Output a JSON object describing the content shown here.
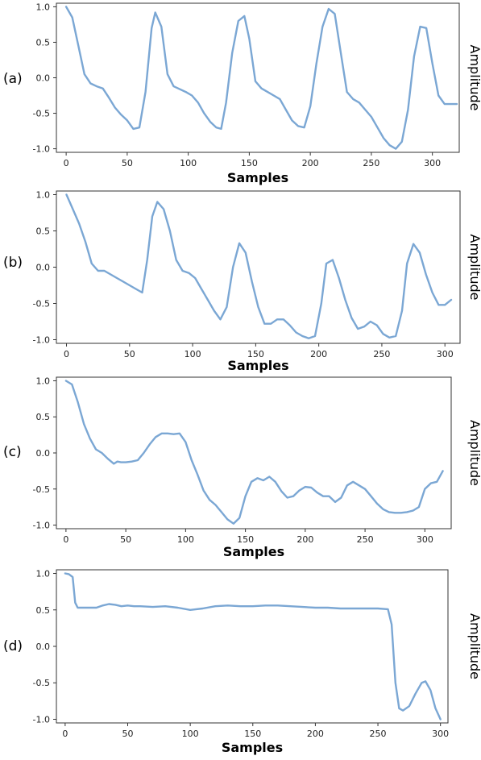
{
  "line_color": "#7ba7d4",
  "chart_data": [
    {
      "type": "line",
      "panel_label": "(a)",
      "xlabel": "Samples",
      "ylabel": "Amplitude",
      "xlim": [
        -8,
        322
      ],
      "ylim": [
        -1.05,
        1.05
      ],
      "xticks": [
        0,
        50,
        100,
        150,
        200,
        250,
        300
      ],
      "yticks": [
        1.0,
        0.5,
        0.0,
        -0.5,
        -1.0
      ],
      "ytick_labels": [
        "1.0",
        "0.5",
        "0.0",
        "-0.5",
        "-1.0"
      ],
      "grid": false,
      "series": [
        {
          "x": [
            0,
            5,
            10,
            15,
            20,
            25,
            30,
            35,
            40,
            45,
            50,
            55,
            60,
            65,
            70,
            73,
            78,
            83,
            88,
            93,
            98,
            103,
            108,
            113,
            118,
            123,
            127,
            131,
            136,
            141,
            146,
            150,
            155,
            160,
            165,
            170,
            175,
            180,
            185,
            190,
            195,
            200,
            205,
            210,
            215,
            220,
            225,
            230,
            235,
            240,
            245,
            250,
            255,
            260,
            265,
            270,
            275,
            280,
            285,
            290,
            295,
            300,
            305,
            310,
            315,
            320
          ],
          "y": [
            1.0,
            0.85,
            0.45,
            0.05,
            -0.08,
            -0.12,
            -0.15,
            -0.28,
            -0.42,
            -0.52,
            -0.6,
            -0.72,
            -0.7,
            -0.2,
            0.7,
            0.92,
            0.72,
            0.05,
            -0.12,
            -0.16,
            -0.2,
            -0.25,
            -0.35,
            -0.5,
            -0.62,
            -0.7,
            -0.72,
            -0.35,
            0.35,
            0.8,
            0.87,
            0.55,
            -0.05,
            -0.15,
            -0.2,
            -0.25,
            -0.3,
            -0.45,
            -0.6,
            -0.68,
            -0.7,
            -0.4,
            0.2,
            0.72,
            0.97,
            0.9,
            0.35,
            -0.2,
            -0.3,
            -0.35,
            -0.45,
            -0.55,
            -0.7,
            -0.85,
            -0.95,
            -1.0,
            -0.9,
            -0.45,
            0.3,
            0.72,
            0.7,
            0.2,
            -0.25,
            -0.37,
            -0.37,
            -0.37
          ]
        }
      ]
    },
    {
      "type": "line",
      "panel_label": "(b)",
      "xlabel": "Samples",
      "ylabel": "Amplitude",
      "xlim": [
        -8,
        312
      ],
      "ylim": [
        -1.05,
        1.05
      ],
      "xticks": [
        0,
        50,
        100,
        150,
        200,
        250,
        300
      ],
      "yticks": [
        1.0,
        0.5,
        0.0,
        -0.5,
        -1.0
      ],
      "ytick_labels": [
        "1.0",
        "0.5",
        "0.0",
        "-0.5",
        "-1.0"
      ],
      "grid": false,
      "series": [
        {
          "x": [
            0,
            5,
            10,
            15,
            20,
            25,
            30,
            35,
            40,
            45,
            50,
            55,
            60,
            64,
            68,
            72,
            77,
            82,
            87,
            92,
            97,
            102,
            107,
            112,
            117,
            122,
            127,
            132,
            137,
            142,
            147,
            152,
            157,
            162,
            167,
            172,
            177,
            182,
            187,
            192,
            197,
            202,
            206,
            211,
            216,
            221,
            226,
            231,
            236,
            241,
            246,
            251,
            256,
            261,
            266,
            270,
            275,
            280,
            285,
            290,
            295,
            300,
            305
          ],
          "y": [
            1.0,
            0.8,
            0.6,
            0.35,
            0.05,
            -0.05,
            -0.05,
            -0.1,
            -0.15,
            -0.2,
            -0.25,
            -0.3,
            -0.35,
            0.1,
            0.7,
            0.9,
            0.8,
            0.5,
            0.1,
            -0.05,
            -0.08,
            -0.15,
            -0.3,
            -0.45,
            -0.6,
            -0.72,
            -0.55,
            0.0,
            0.33,
            0.2,
            -0.2,
            -0.55,
            -0.78,
            -0.78,
            -0.72,
            -0.72,
            -0.8,
            -0.9,
            -0.95,
            -0.98,
            -0.95,
            -0.5,
            0.05,
            0.1,
            -0.15,
            -0.45,
            -0.7,
            -0.85,
            -0.82,
            -0.75,
            -0.8,
            -0.92,
            -0.97,
            -0.95,
            -0.6,
            0.05,
            0.32,
            0.2,
            -0.1,
            -0.35,
            -0.52,
            -0.52,
            -0.45
          ]
        }
      ]
    },
    {
      "type": "line",
      "panel_label": "(c)",
      "xlabel": "Samples",
      "ylabel": "Amplitude",
      "xlim": [
        -8,
        322
      ],
      "ylim": [
        -1.05,
        1.05
      ],
      "xticks": [
        0,
        50,
        100,
        150,
        200,
        250,
        300
      ],
      "yticks": [
        1.0,
        0.5,
        0.0,
        -0.5,
        -1.0
      ],
      "ytick_labels": [
        "1.0",
        "0.5",
        "0.0",
        "-0.5",
        "-1.0"
      ],
      "grid": false,
      "series": [
        {
          "x": [
            0,
            5,
            10,
            15,
            20,
            25,
            30,
            35,
            40,
            43,
            46,
            50,
            55,
            60,
            65,
            70,
            75,
            80,
            85,
            90,
            95,
            100,
            105,
            110,
            115,
            120,
            125,
            130,
            135,
            140,
            145,
            150,
            155,
            160,
            165,
            170,
            175,
            180,
            185,
            190,
            195,
            200,
            205,
            210,
            215,
            220,
            225,
            230,
            235,
            240,
            245,
            250,
            255,
            260,
            265,
            270,
            275,
            280,
            285,
            290,
            295,
            300,
            305,
            310,
            315
          ],
          "y": [
            1.0,
            0.95,
            0.7,
            0.4,
            0.2,
            0.05,
            0.0,
            -0.08,
            -0.15,
            -0.12,
            -0.13,
            -0.13,
            -0.12,
            -0.1,
            0.0,
            0.12,
            0.22,
            0.27,
            0.27,
            0.26,
            0.27,
            0.15,
            -0.1,
            -0.3,
            -0.52,
            -0.65,
            -0.72,
            -0.82,
            -0.92,
            -0.98,
            -0.9,
            -0.6,
            -0.4,
            -0.35,
            -0.38,
            -0.33,
            -0.4,
            -0.53,
            -0.62,
            -0.6,
            -0.52,
            -0.47,
            -0.48,
            -0.55,
            -0.6,
            -0.6,
            -0.68,
            -0.62,
            -0.45,
            -0.4,
            -0.45,
            -0.5,
            -0.6,
            -0.7,
            -0.78,
            -0.82,
            -0.83,
            -0.83,
            -0.82,
            -0.8,
            -0.75,
            -0.5,
            -0.42,
            -0.4,
            -0.25
          ]
        }
      ]
    },
    {
      "type": "line",
      "panel_label": "(d)",
      "xlabel": "Samples",
      "ylabel": "Amplitude",
      "xlim": [
        -7,
        306
      ],
      "ylim": [
        -1.05,
        1.05
      ],
      "xticks": [
        0,
        50,
        100,
        150,
        200,
        250,
        300
      ],
      "yticks": [
        1.0,
        0.5,
        0.0,
        -0.5,
        -1.0
      ],
      "ytick_labels": [
        "1.0",
        "0.5",
        "0.0",
        "-0.5",
        "-1.0"
      ],
      "grid": false,
      "series": [
        {
          "x": [
            0,
            3,
            6,
            8,
            10,
            15,
            20,
            25,
            30,
            35,
            40,
            45,
            50,
            55,
            60,
            70,
            80,
            90,
            100,
            110,
            120,
            130,
            140,
            150,
            160,
            170,
            180,
            190,
            200,
            210,
            220,
            230,
            240,
            250,
            258,
            261,
            264,
            267,
            270,
            275,
            280,
            285,
            288,
            292,
            296,
            300
          ],
          "y": [
            1.0,
            0.99,
            0.95,
            0.6,
            0.53,
            0.53,
            0.53,
            0.53,
            0.56,
            0.58,
            0.57,
            0.55,
            0.56,
            0.55,
            0.55,
            0.54,
            0.55,
            0.53,
            0.5,
            0.52,
            0.55,
            0.56,
            0.55,
            0.55,
            0.56,
            0.56,
            0.55,
            0.54,
            0.53,
            0.53,
            0.52,
            0.52,
            0.52,
            0.52,
            0.51,
            0.3,
            -0.5,
            -0.85,
            -0.88,
            -0.82,
            -0.65,
            -0.5,
            -0.48,
            -0.6,
            -0.85,
            -1.0
          ]
        }
      ]
    }
  ]
}
